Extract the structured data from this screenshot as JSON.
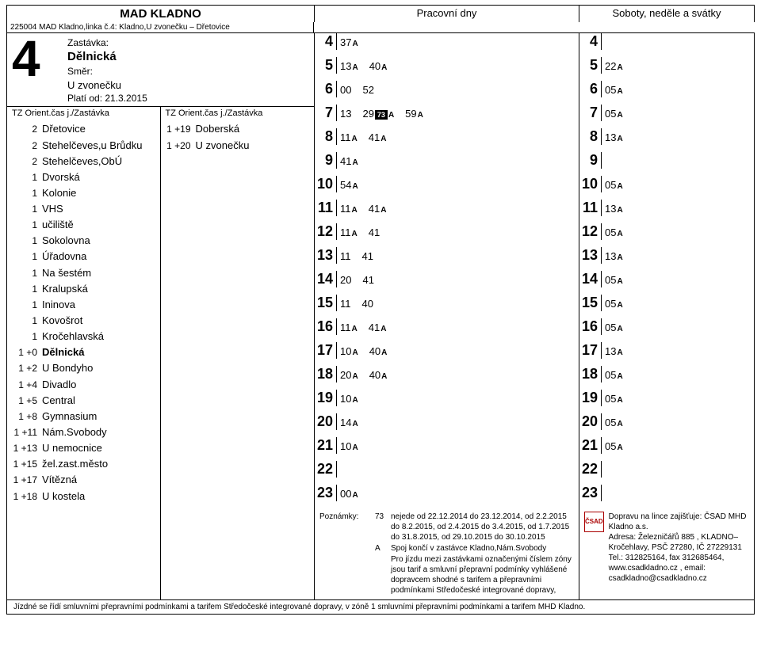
{
  "header": {
    "title": "MAD KLADNO",
    "weekday": "Pracovní dny",
    "weekend": "Soboty, neděle a svátky",
    "routeId": "225004 MAD Kladno,linka č.4: Kladno,U zvonečku – Dřetovice"
  },
  "stopBlock": {
    "lineNum": "4",
    "stopLabel": "Zastávka:",
    "stopName": "Dělnická",
    "dirLabel": "Směr:",
    "dirName": "U zvonečku",
    "validLabel": "Platí od: 21.3.2015"
  },
  "tzHeader": {
    "left": "TZ Orient.čas j./Zastávka",
    "right": "TZ Orient.čas j./Zastávka"
  },
  "stopsLeft": [
    {
      "t": "2",
      "n": "Dřetovice"
    },
    {
      "t": "2",
      "n": "Stehelčeves,u Brůdku"
    },
    {
      "t": "2",
      "n": "Stehelčeves,ObÚ"
    },
    {
      "t": "1",
      "n": "Dvorská"
    },
    {
      "t": "1",
      "n": "Kolonie"
    },
    {
      "t": "1",
      "n": "VHS"
    },
    {
      "t": "1",
      "n": "učiliště"
    },
    {
      "t": "1",
      "n": "Sokolovna"
    },
    {
      "t": "1",
      "n": "Úřadovna"
    },
    {
      "t": "1",
      "n": "Na šestém"
    },
    {
      "t": "1",
      "n": "Kralupská"
    },
    {
      "t": "1",
      "n": "Ininova"
    },
    {
      "t": "1",
      "n": "Kovošrot"
    },
    {
      "t": "1",
      "n": "Kročehlavská"
    },
    {
      "t": "1 +0",
      "n": "Dělnická",
      "bold": true
    },
    {
      "t": "1 +2",
      "n": "U Bondyho"
    },
    {
      "t": "1 +4",
      "n": "Divadlo"
    },
    {
      "t": "1 +5",
      "n": "Central"
    },
    {
      "t": "1 +8",
      "n": "Gymnasium"
    },
    {
      "t": "1 +11",
      "n": "Nám.Svobody"
    },
    {
      "t": "1 +13",
      "n": "U nemocnice"
    },
    {
      "t": "1 +15",
      "n": "žel.zast.město"
    },
    {
      "t": "1 +17",
      "n": "Vítězná"
    },
    {
      "t": "1 +18",
      "n": "U kostela"
    }
  ],
  "stopsRight": [
    {
      "t": "1 +19",
      "n": "Doberská"
    },
    {
      "t": "1 +20",
      "n": "U zvonečku"
    }
  ],
  "weekdayTimes": [
    {
      "h": "4",
      "m": [
        {
          "v": "37",
          "s": "A"
        }
      ]
    },
    {
      "h": "5",
      "m": [
        {
          "v": "13",
          "s": "A"
        },
        {
          "v": "40",
          "s": "A"
        }
      ]
    },
    {
      "h": "6",
      "m": [
        {
          "v": "00"
        },
        {
          "v": "52"
        }
      ]
    },
    {
      "h": "7",
      "m": [
        {
          "v": "13"
        },
        {
          "v": "29",
          "s": "A",
          "neg": "73"
        },
        {
          "v": "59",
          "s": "A"
        }
      ]
    },
    {
      "h": "8",
      "m": [
        {
          "v": "11",
          "s": "A"
        },
        {
          "v": "41",
          "s": "A"
        }
      ]
    },
    {
      "h": "9",
      "m": [
        {
          "v": "41",
          "s": "A"
        }
      ]
    },
    {
      "h": "10",
      "m": [
        {
          "v": "54",
          "s": "A"
        }
      ]
    },
    {
      "h": "11",
      "m": [
        {
          "v": "11",
          "s": "A"
        },
        {
          "v": "41",
          "s": "A"
        }
      ]
    },
    {
      "h": "12",
      "m": [
        {
          "v": "11",
          "s": "A"
        },
        {
          "v": "41"
        }
      ]
    },
    {
      "h": "13",
      "m": [
        {
          "v": "11"
        },
        {
          "v": "41"
        }
      ]
    },
    {
      "h": "14",
      "m": [
        {
          "v": "20"
        },
        {
          "v": "41"
        }
      ]
    },
    {
      "h": "15",
      "m": [
        {
          "v": "11"
        },
        {
          "v": "40"
        }
      ]
    },
    {
      "h": "16",
      "m": [
        {
          "v": "11",
          "s": "A"
        },
        {
          "v": "41",
          "s": "A"
        }
      ]
    },
    {
      "h": "17",
      "m": [
        {
          "v": "10",
          "s": "A"
        },
        {
          "v": "40",
          "s": "A"
        }
      ]
    },
    {
      "h": "18",
      "m": [
        {
          "v": "20",
          "s": "A"
        },
        {
          "v": "40",
          "s": "A"
        }
      ]
    },
    {
      "h": "19",
      "m": [
        {
          "v": "10",
          "s": "A"
        }
      ]
    },
    {
      "h": "20",
      "m": [
        {
          "v": "14",
          "s": "A"
        }
      ]
    },
    {
      "h": "21",
      "m": [
        {
          "v": "10",
          "s": "A"
        }
      ]
    },
    {
      "h": "22",
      "m": []
    },
    {
      "h": "23",
      "m": [
        {
          "v": "00",
          "s": "A"
        }
      ]
    }
  ],
  "weekendTimes": [
    {
      "h": "4",
      "m": []
    },
    {
      "h": "5",
      "m": [
        {
          "v": "22",
          "s": "A"
        }
      ]
    },
    {
      "h": "6",
      "m": [
        {
          "v": "05",
          "s": "A"
        }
      ]
    },
    {
      "h": "7",
      "m": [
        {
          "v": "05",
          "s": "A"
        }
      ]
    },
    {
      "h": "8",
      "m": [
        {
          "v": "13",
          "s": "A"
        }
      ]
    },
    {
      "h": "9",
      "m": []
    },
    {
      "h": "10",
      "m": [
        {
          "v": "05",
          "s": "A"
        }
      ]
    },
    {
      "h": "11",
      "m": [
        {
          "v": "13",
          "s": "A"
        }
      ]
    },
    {
      "h": "12",
      "m": [
        {
          "v": "05",
          "s": "A"
        }
      ]
    },
    {
      "h": "13",
      "m": [
        {
          "v": "13",
          "s": "A"
        }
      ]
    },
    {
      "h": "14",
      "m": [
        {
          "v": "05",
          "s": "A"
        }
      ]
    },
    {
      "h": "15",
      "m": [
        {
          "v": "05",
          "s": "A"
        }
      ]
    },
    {
      "h": "16",
      "m": [
        {
          "v": "05",
          "s": "A"
        }
      ]
    },
    {
      "h": "17",
      "m": [
        {
          "v": "13",
          "s": "A"
        }
      ]
    },
    {
      "h": "18",
      "m": [
        {
          "v": "05",
          "s": "A"
        }
      ]
    },
    {
      "h": "19",
      "m": [
        {
          "v": "05",
          "s": "A"
        }
      ]
    },
    {
      "h": "20",
      "m": [
        {
          "v": "05",
          "s": "A"
        }
      ]
    },
    {
      "h": "21",
      "m": [
        {
          "v": "05",
          "s": "A"
        }
      ]
    },
    {
      "h": "22",
      "m": []
    },
    {
      "h": "23",
      "m": []
    }
  ],
  "notes": {
    "label": "Poznámky:",
    "items": [
      {
        "k": "73",
        "neg": true,
        "v": "nejede od 22.12.2014 do 23.12.2014, od 2.2.2015 do 8.2.2015, od 2.4.2015 do 3.4.2015, od 1.7.2015 do 31.8.2015, od 29.10.2015 do 30.10.2015"
      },
      {
        "k": "A",
        "v": "Spoj končí v zastávce Kladno,Nám.Svobody"
      },
      {
        "k": "",
        "v": "Pro jízdu mezi zastávkami označenými číslem zóny jsou tarif a smluvní přepravní podmínky vyhlášené dopravcem shodné s tarifem a přepravními podmínkami Středočeské integrované dopravy,"
      }
    ]
  },
  "operator": {
    "logo": "ČSAD",
    "l1": "Dopravu na lince zajišťuje: ČSAD MHD Kladno a.s.",
    "l2": "Adresa: Železničářů 885 , KLADNO–Kročehlavy, PSČ 27280, IČ 27229131",
    "l3": "Tel.: 312825164, fax 312685464, www.csadkladno.cz , email: csadkladno@csadkladno.cz"
  },
  "footer": "Jízdné se řídí smluvními přepravními podmínkami a tarifem Středočeské integrované dopravy, v zóně 1 smluvními přepravními podmínkami a tarifem MHD Kladno."
}
